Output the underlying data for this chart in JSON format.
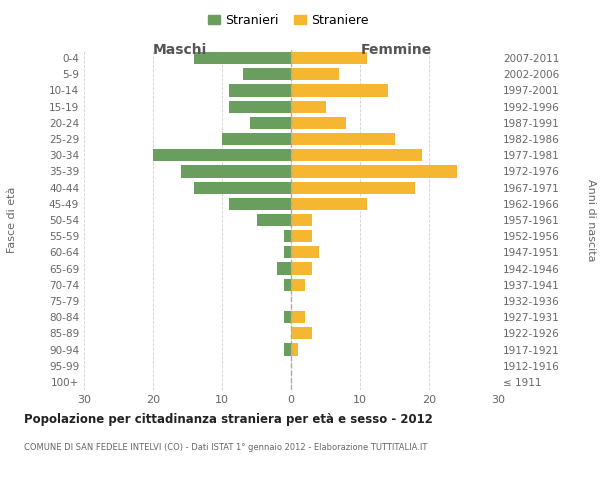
{
  "age_groups": [
    "100+",
    "95-99",
    "90-94",
    "85-89",
    "80-84",
    "75-79",
    "70-74",
    "65-69",
    "60-64",
    "55-59",
    "50-54",
    "45-49",
    "40-44",
    "35-39",
    "30-34",
    "25-29",
    "20-24",
    "15-19",
    "10-14",
    "5-9",
    "0-4"
  ],
  "birth_years": [
    "≤ 1911",
    "1912-1916",
    "1917-1921",
    "1922-1926",
    "1927-1931",
    "1932-1936",
    "1937-1941",
    "1942-1946",
    "1947-1951",
    "1952-1956",
    "1957-1961",
    "1962-1966",
    "1967-1971",
    "1972-1976",
    "1977-1981",
    "1982-1986",
    "1987-1991",
    "1992-1996",
    "1997-2001",
    "2002-2006",
    "2007-2011"
  ],
  "maschi": [
    0,
    0,
    1,
    0,
    1,
    0,
    1,
    2,
    1,
    1,
    5,
    9,
    14,
    16,
    20,
    10,
    6,
    9,
    9,
    7,
    14
  ],
  "femmine": [
    0,
    0,
    1,
    3,
    2,
    0,
    2,
    3,
    4,
    3,
    3,
    11,
    18,
    24,
    19,
    15,
    8,
    5,
    14,
    7,
    11
  ],
  "color_maschi": "#6a9e5e",
  "color_femmine": "#f5b731",
  "title": "Popolazione per cittadinanza straniera per età e sesso - 2012",
  "subtitle": "COMUNE DI SAN FEDELE INTELVI (CO) - Dati ISTAT 1° gennaio 2012 - Elaborazione TUTTITALIA.IT",
  "ylabel_left": "Fasce di età",
  "ylabel_right": "Anni di nascita",
  "xlabel_maschi": "Maschi",
  "xlabel_femmine": "Femmine",
  "legend_maschi": "Stranieri",
  "legend_femmine": "Straniere",
  "xlim": 30,
  "background_color": "#ffffff",
  "grid_color": "#d0d0d0"
}
